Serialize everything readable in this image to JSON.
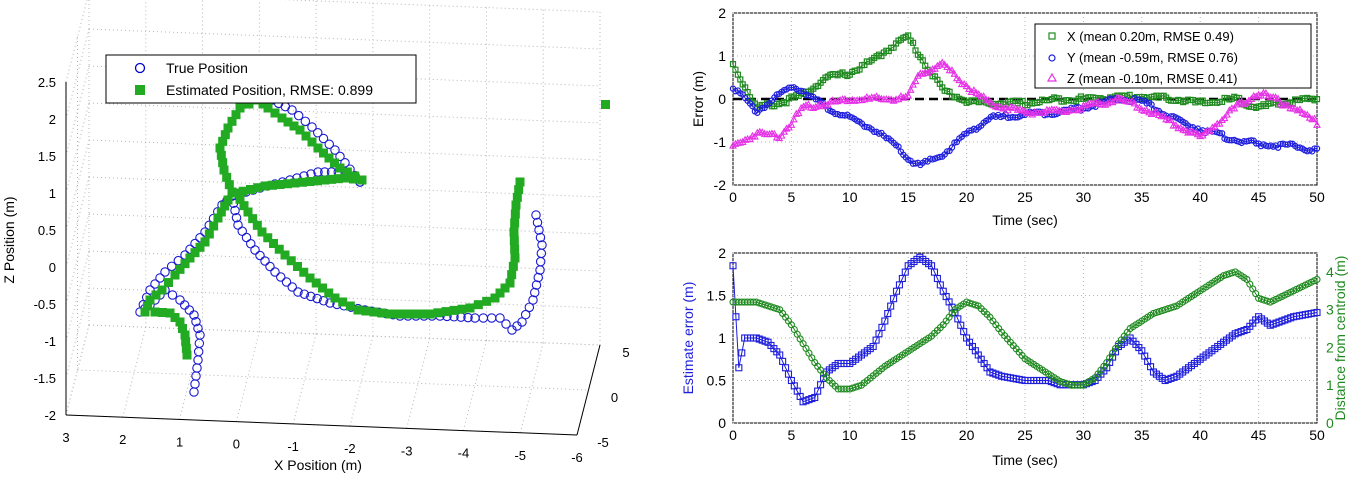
{
  "panel3d": {
    "xlabel": "X Position (m)",
    "ylabel": "Z Position (m)",
    "xticks": [
      "3",
      "2",
      "1",
      "0",
      "-1",
      "-2",
      "-3",
      "-4",
      "-5",
      "-6"
    ],
    "zticks": [
      "-2",
      "-1.5",
      "-1",
      "-0.5",
      "0",
      "0.5",
      "1",
      "1.5",
      "2",
      "2.5"
    ],
    "yticks": [
      "-5",
      "0",
      "5"
    ],
    "legend": [
      {
        "label": "True Position",
        "marker": "circle",
        "color": "#0000cc"
      },
      {
        "label": "Estimated Position, RMSE: 0.899",
        "marker": "square",
        "color": "#22aa22"
      }
    ]
  },
  "panelTop": {
    "xlabel": "Time (sec)",
    "ylabel": "Error (m)",
    "xticks": [
      "0",
      "5",
      "10",
      "15",
      "20",
      "25",
      "30",
      "35",
      "40",
      "45",
      "50"
    ],
    "yticks": [
      "2",
      "1",
      "0",
      "-1",
      "-2"
    ],
    "legend": [
      {
        "label": "X (mean 0.20m, RMSE 0.49)",
        "color": "#1f8a1f"
      },
      {
        "label": "Y (mean -0.59m, RMSE 0.76)",
        "color": "#1e1edc"
      },
      {
        "label": "Z (mean -0.10m, RMSE 0.41)",
        "color": "#e633e6"
      }
    ]
  },
  "panelBottom": {
    "xlabel": "Time (sec)",
    "ylabel_left": "Estimate error (m)",
    "ylabel_right": "Distance from centroid (m)",
    "xticks": [
      "0",
      "5",
      "10",
      "15",
      "20",
      "25",
      "30",
      "35",
      "40",
      "45",
      "50"
    ],
    "yticks_left": [
      "2",
      "1.5",
      "1",
      "0.5",
      "0"
    ],
    "yticks_right": [
      "4",
      "3",
      "2",
      "1",
      "0"
    ]
  },
  "chart_data": [
    {
      "type": "scatter",
      "projection": "3d",
      "xlabel": "X Position (m)",
      "zlabel": "Z Position (m)",
      "xlim": [
        -6,
        3
      ],
      "ylim": [
        -5,
        5
      ],
      "zlim": [
        -2,
        2.5
      ],
      "grid": true,
      "legend_position": "top-left",
      "series": [
        {
          "name": "True Position",
          "marker": "circle",
          "color": "#0000cc"
        },
        {
          "name": "Estimated Position, RMSE: 0.899",
          "marker": "square",
          "color": "#22aa22"
        }
      ]
    },
    {
      "type": "line",
      "xlabel": "Time (sec)",
      "ylabel": "Error (m)",
      "xlim": [
        0,
        50
      ],
      "ylim": [
        -2,
        2
      ],
      "grid": true,
      "legend_position": "top-right",
      "x": [
        0,
        2,
        4,
        5,
        6,
        8,
        10,
        12,
        14,
        15,
        16,
        18,
        20,
        22,
        25,
        28,
        30,
        33,
        35,
        38,
        40,
        43,
        45,
        48,
        50
      ],
      "series": [
        {
          "name": "X (mean 0.20m, RMSE 0.49)",
          "color": "#1f8a1f",
          "values": [
            0.8,
            -0.2,
            -0.1,
            0,
            0.1,
            0.5,
            0.6,
            0.9,
            1.3,
            1.45,
            1.0,
            0.2,
            -0.05,
            -0.1,
            -0.1,
            0,
            0,
            0.05,
            0.05,
            0,
            -0.1,
            0,
            -0.2,
            -0.05,
            0
          ]
        },
        {
          "name": "Y (mean -0.59m, RMSE 0.76)",
          "color": "#1e1edc",
          "values": [
            0.3,
            -0.3,
            0.1,
            0.3,
            0.2,
            -0.2,
            -0.45,
            -0.7,
            -1.1,
            -1.4,
            -1.55,
            -1.3,
            -0.8,
            -0.45,
            -0.35,
            -0.3,
            -0.2,
            0,
            -0.05,
            -0.5,
            -0.7,
            -0.95,
            -1.05,
            -1.1,
            -1.2
          ]
        },
        {
          "name": "Z (mean -0.10m, RMSE 0.41)",
          "color": "#e633e6",
          "values": [
            -1.1,
            -0.8,
            -0.85,
            -0.55,
            -0.2,
            -0.1,
            0,
            0,
            0,
            0.05,
            0.6,
            0.8,
            0.3,
            -0.1,
            -0.3,
            -0.3,
            -0.2,
            0,
            -0.2,
            -0.6,
            -0.9,
            -0.2,
            0.15,
            -0.2,
            -0.55
          ]
        }
      ]
    },
    {
      "type": "line",
      "xlabel": "Time (sec)",
      "ylabel": "Estimate error (m)",
      "y2label": "Distance from centroid (m)",
      "xlim": [
        0,
        50
      ],
      "ylim": [
        0,
        2
      ],
      "y2lim": [
        0,
        4.5
      ],
      "grid": true,
      "x": [
        0,
        0.5,
        1,
        2,
        3,
        4,
        5,
        6,
        7,
        8,
        9,
        10,
        11,
        12,
        13,
        14,
        15,
        16,
        17,
        18,
        19,
        20,
        21,
        22,
        23,
        25,
        27,
        28,
        29,
        30,
        31,
        32,
        33,
        34,
        35,
        36,
        37,
        38,
        40,
        42,
        43,
        44,
        45,
        46,
        48,
        50
      ],
      "series": [
        {
          "name": "Estimate error (m)",
          "axis": "left",
          "color": "#1e1edc",
          "values": [
            1.85,
            0.65,
            1.0,
            1.0,
            0.95,
            0.8,
            0.5,
            0.25,
            0.3,
            0.6,
            0.7,
            0.7,
            0.8,
            0.9,
            1.2,
            1.55,
            1.85,
            1.95,
            1.85,
            1.55,
            1.3,
            1.0,
            0.8,
            0.6,
            0.55,
            0.5,
            0.5,
            0.45,
            0.45,
            0.45,
            0.5,
            0.65,
            0.9,
            1.0,
            0.85,
            0.6,
            0.5,
            0.55,
            0.75,
            0.95,
            1.05,
            1.1,
            1.25,
            1.15,
            1.25,
            1.3
          ]
        },
        {
          "name": "Distance from centroid (m)",
          "axis": "right",
          "color": "#1f8a1f",
          "values": [
            3.2,
            3.2,
            3.2,
            3.2,
            3.1,
            3.0,
            2.6,
            2.1,
            1.6,
            1.2,
            0.9,
            0.9,
            1.0,
            1.25,
            1.5,
            1.7,
            1.9,
            2.1,
            2.3,
            2.6,
            3.0,
            3.2,
            3.1,
            2.8,
            2.4,
            1.7,
            1.3,
            1.1,
            1.0,
            1.0,
            1.2,
            1.6,
            2.1,
            2.5,
            2.7,
            2.9,
            3.0,
            3.1,
            3.5,
            3.9,
            4.0,
            3.8,
            3.3,
            3.2,
            3.5,
            3.8
          ]
        }
      ]
    }
  ]
}
